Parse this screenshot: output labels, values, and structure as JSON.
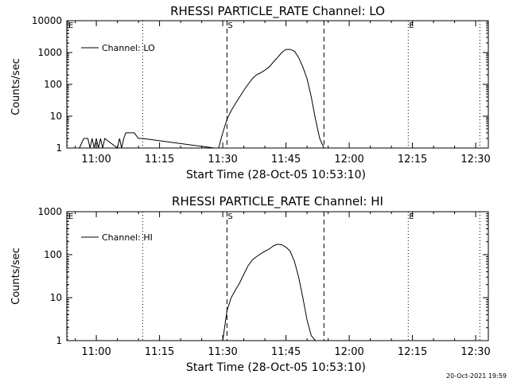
{
  "footer": {
    "timestamp": "20-Oct-2021 19:59"
  },
  "chart_data": [
    {
      "type": "line",
      "title": "RHESSI PARTICLE_RATE Channel: LO",
      "xlabel": "Start Time (28-Oct-05 10:53:10)",
      "ylabel": "Counts/sec",
      "xlim": [
        "10:53",
        "12:33"
      ],
      "ylim": [
        1,
        10000
      ],
      "yscale": "log",
      "x_ticks": [
        "11:00",
        "11:15",
        "11:30",
        "11:45",
        "12:00",
        "12:15",
        "12:30"
      ],
      "y_ticks": [
        "1",
        "10",
        "100",
        "1000",
        "10000"
      ],
      "legend": {
        "label": "Channel: LO",
        "position": "top-left"
      },
      "markers": [
        {
          "label": "E",
          "time": "10:53",
          "style": "dotted"
        },
        {
          "label": "",
          "time": "11:11",
          "style": "dotted"
        },
        {
          "label": "S",
          "time": "11:31",
          "style": "dashed"
        },
        {
          "label": "",
          "time": "11:54",
          "style": "dashed"
        },
        {
          "label": "E",
          "time": "12:14",
          "style": "dotted"
        },
        {
          "label": "",
          "time": "12:31",
          "style": "dotted"
        }
      ],
      "series": [
        {
          "name": "Channel: LO",
          "x": [
            "10:56",
            "10:57",
            "10:58",
            "10:58:30",
            "10:59",
            "10:59:30",
            "11:00",
            "11:00:30",
            "11:01",
            "11:01:30",
            "11:02",
            "11:05",
            "11:05:30",
            "11:06",
            "11:06:30",
            "11:07",
            "11:08",
            "11:09",
            "11:10",
            "11:11",
            "11:28",
            "11:29",
            "11:30",
            "11:31",
            "11:32",
            "11:33",
            "11:34",
            "11:35",
            "11:36",
            "11:37",
            "11:38",
            "11:39",
            "11:40",
            "11:41",
            "11:42",
            "11:43",
            "11:44",
            "11:45",
            "11:46",
            "11:47",
            "11:48",
            "11:49",
            "11:50",
            "11:51",
            "11:52",
            "11:53",
            "11:54"
          ],
          "y": [
            1,
            2,
            2,
            1,
            2,
            1,
            2,
            1,
            2,
            1,
            2,
            1,
            2,
            1,
            2,
            3,
            3,
            3,
            2,
            2,
            1,
            1,
            3,
            8,
            15,
            25,
            40,
            65,
            100,
            150,
            200,
            230,
            280,
            350,
            500,
            700,
            1000,
            1250,
            1250,
            1100,
            700,
            350,
            150,
            40,
            8,
            2,
            1
          ]
        }
      ]
    },
    {
      "type": "line",
      "title": "RHESSI PARTICLE_RATE Channel: HI",
      "xlabel": "Start Time (28-Oct-05 10:53:10)",
      "ylabel": "Counts/sec",
      "xlim": [
        "10:53",
        "12:33"
      ],
      "ylim": [
        1,
        1000
      ],
      "yscale": "log",
      "x_ticks": [
        "11:00",
        "11:15",
        "11:30",
        "11:45",
        "12:00",
        "12:15",
        "12:30"
      ],
      "y_ticks": [
        "1",
        "10",
        "100",
        "1000"
      ],
      "legend": {
        "label": "Channel: HI",
        "position": "top-left"
      },
      "markers": [
        {
          "label": "E",
          "time": "10:53",
          "style": "dotted"
        },
        {
          "label": "",
          "time": "11:11",
          "style": "dotted"
        },
        {
          "label": "S",
          "time": "11:31",
          "style": "dashed"
        },
        {
          "label": "",
          "time": "11:54",
          "style": "dashed"
        },
        {
          "label": "E",
          "time": "12:14",
          "style": "dotted"
        },
        {
          "label": "",
          "time": "12:31",
          "style": "dotted"
        }
      ],
      "series": [
        {
          "name": "Channel: HI",
          "x": [
            "11:30",
            "11:31",
            "11:32",
            "11:33",
            "11:34",
            "11:35",
            "11:36",
            "11:37",
            "11:38",
            "11:39",
            "11:40",
            "11:41",
            "11:42",
            "11:43",
            "11:44",
            "11:45",
            "11:46",
            "11:47",
            "11:48",
            "11:49",
            "11:50",
            "11:51",
            "11:52"
          ],
          "y": [
            1,
            5,
            10,
            15,
            22,
            35,
            55,
            75,
            90,
            105,
            120,
            135,
            160,
            175,
            170,
            150,
            120,
            70,
            30,
            10,
            3,
            1.3,
            1
          ]
        }
      ]
    }
  ]
}
